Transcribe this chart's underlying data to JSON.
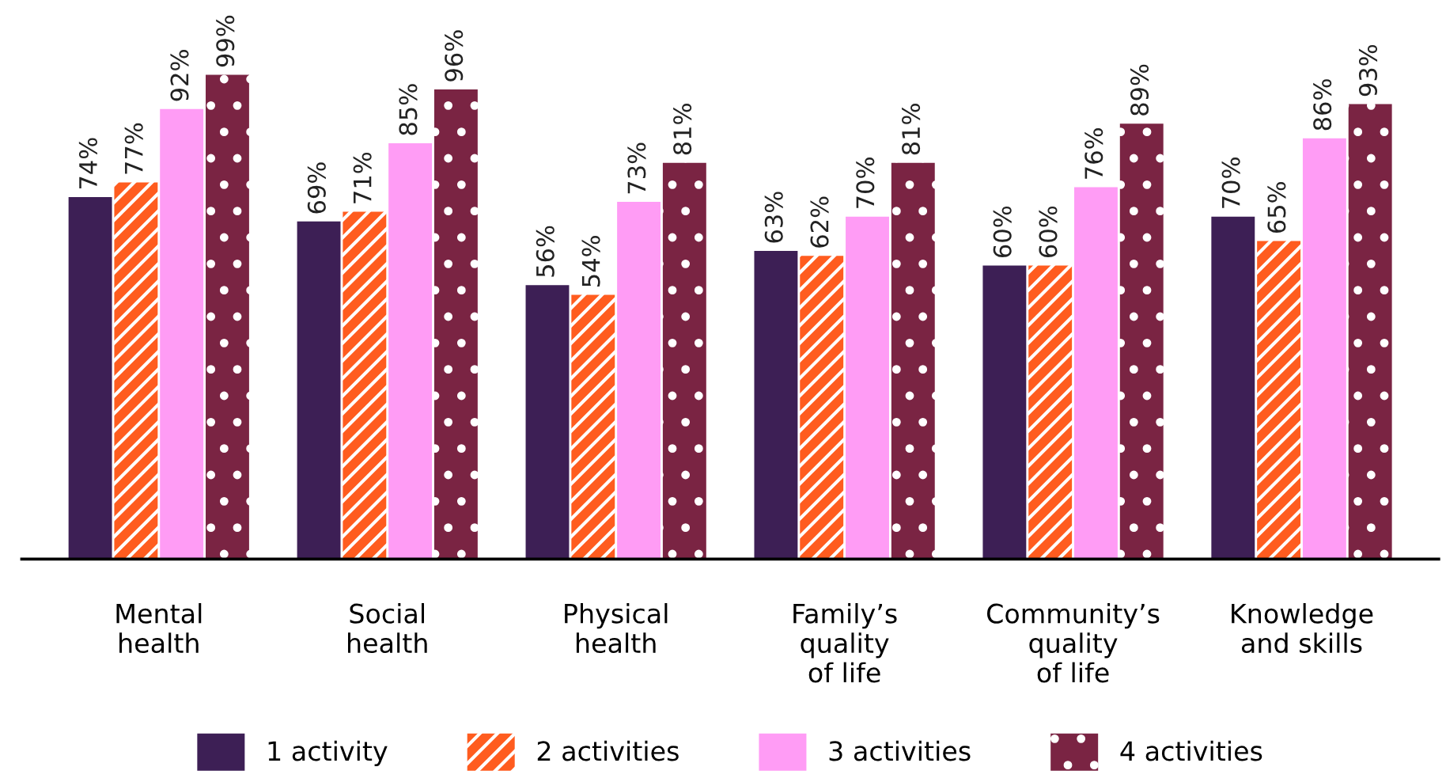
{
  "chart_data": {
    "type": "bar",
    "categories": [
      "Mental\nhealth",
      "Social\nhealth",
      "Physical\nhealth",
      "Family’s\nquality\nof life",
      "Community’s\nquality\nof life",
      "Knowledge\nand skills"
    ],
    "series": [
      {
        "name": "1 activity",
        "color": "#3d1f55",
        "values": [
          74,
          69,
          56,
          63,
          60,
          70
        ],
        "value_labels": [
          "74%",
          "69%",
          "56%",
          "63%",
          "60%",
          "70%"
        ]
      },
      {
        "name": "2 activities",
        "color": "#ff5c1f",
        "values": [
          77,
          71,
          54,
          62,
          60,
          65
        ],
        "value_labels": [
          "77%",
          "71%",
          "54%",
          "62%",
          "60%",
          "65%"
        ]
      },
      {
        "name": "3 activities",
        "color": "#ff9cf5",
        "values": [
          92,
          85,
          73,
          70,
          76,
          86
        ],
        "value_labels": [
          "92%",
          "85%",
          "73%",
          "70%",
          "76%",
          "86%"
        ]
      },
      {
        "name": "4 activities",
        "color": "#7a2443",
        "values": [
          99,
          96,
          81,
          81,
          89,
          93
        ],
        "value_labels": [
          "99%",
          "96%",
          "81%",
          "81%",
          "89%",
          "93%"
        ]
      }
    ],
    "legend": "bottom",
    "grid": false
  }
}
